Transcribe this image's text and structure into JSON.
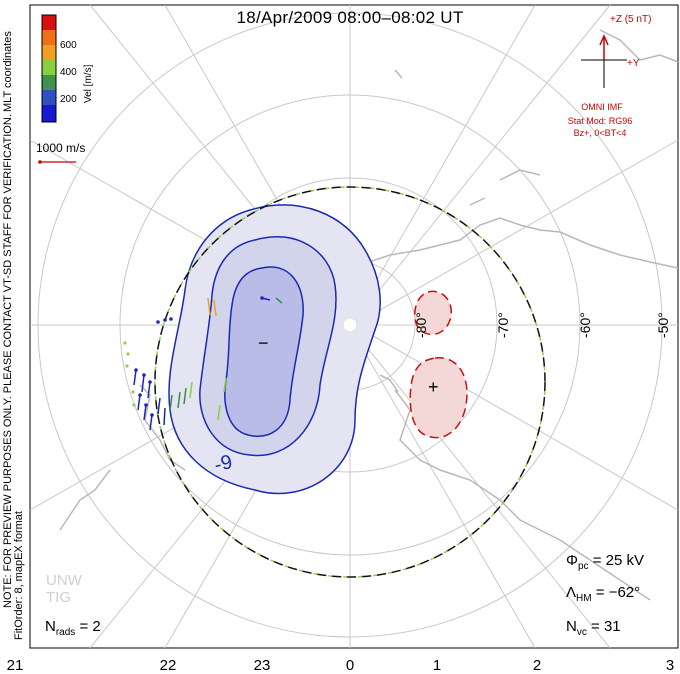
{
  "title": "18/Apr/2009 08:00–08:02 UT",
  "colorbar": {
    "ticks": [
      "600",
      "400",
      "200"
    ],
    "label": "Vel [m/s]",
    "colors": [
      "#d81010",
      "#f07018",
      "#f0a020",
      "#88d040",
      "#409050",
      "#3050c0",
      "#1818d0"
    ]
  },
  "coordinates_label": "MLT coordinates",
  "scale_vector_label": "1000 m/s",
  "imf": {
    "z_label": "+Z (5 nT)",
    "y_label": "+Y",
    "name": "OMNI IMF",
    "model_line1": "Stat Mod: RG96",
    "model_line2": "Bz+, 0<BT<4"
  },
  "latitude_labels": [
    "-80°",
    "-70°",
    "-60°",
    "-50°"
  ],
  "mlt_labels": [
    "21",
    "22",
    "23",
    "0",
    "1",
    "2",
    "3"
  ],
  "notes": {
    "preview": "NOTE: FOR PREVIEW PURPOSES ONLY. PLEASE CONTACT VT-SD STAFF FOR VERIFICATION.",
    "fit": "FitOrder: 8, mapEX format"
  },
  "contour_label": "-9",
  "stats": {
    "phi_pc": "Φpc = 25 kV",
    "lambda_hm": "ΛHM = −62°",
    "n_vc": "Nvc = 31",
    "n_rads": "Nrads = 2"
  },
  "stats_parts": {
    "phi_sym": "Φ",
    "phi_sub": "pc",
    "phi_val": " = 25 kV",
    "lam_sym": "Λ",
    "lam_sub": "HM",
    "lam_val": " = −62°",
    "nvc_sym": "N",
    "nvc_sub": "vc",
    "nvc_val": " = 31",
    "nr_sym": "N",
    "nr_sub": "rads",
    "nr_val": " = 2"
  },
  "watermark": [
    "UNW",
    "TIG"
  ],
  "min_marker": "−",
  "max_marker": "+"
}
